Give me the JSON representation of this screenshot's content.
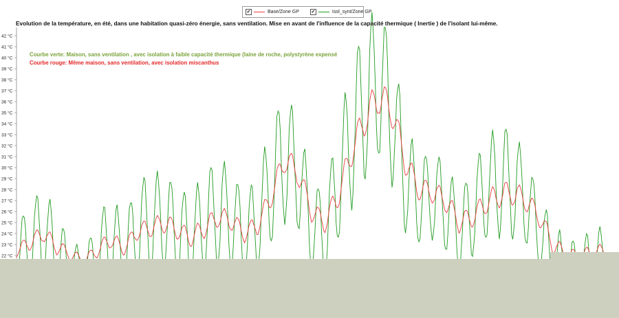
{
  "legend": {
    "items": [
      {
        "label": "Base/Zone GP",
        "checked": "✔",
        "color": "#e63a3a"
      },
      {
        "label": "Isol_synt/Zone GP",
        "checked": "✔",
        "color": "#1f9a1f"
      }
    ]
  },
  "title": "Evolution de la température, en été,  dans une habitation quasi-zéro énergie, sans ventilation. Mise en avant de l'influence de la capacité thermique ( Inertie ) de l'isolant lui-même.",
  "annotations": {
    "green": "Courbe verte: Maison, sans ventilation , avec isolation à faible capacité thermique (laine de roche, polystyrène expensé",
    "red": "Courbe rouge: Même maison, sans ventilation, avec isolation miscanthus"
  },
  "colors": {
    "cover": "#ced0bf",
    "red_series": "#e63a3a",
    "green_series": "#1f9a1f"
  },
  "chart_data": {
    "type": "line",
    "title": "Evolution de la température, en été,  dans une habitation quasi-zéro énergie, sans ventilation. Mise en avant de l'influence de la capacité thermique ( Inertie ) de l'isolant lui-même.",
    "ylabel": "",
    "xlabel": "",
    "y_ticks": [
      "42 °C",
      "41 °C",
      "40 °C",
      "39 °C",
      "38 °C",
      "37 °C",
      "36 °C",
      "35 °C",
      "34 °C",
      "33 °C",
      "32 °C",
      "31 °C",
      "30 °C",
      "29 °C",
      "28 °C",
      "27 °C",
      "26 °C",
      "25 °C",
      "24 °C",
      "23 °C",
      "22 °C"
    ],
    "ylim": [
      22,
      42
    ],
    "grid": true,
    "x_unit": "day",
    "series": [
      {
        "name": "Base/Zone GP",
        "color": "#e63a3a",
        "daily_mean": [
          22.4,
          23.2,
          24.0,
          22.8,
          22.1,
          21.5,
          22.4,
          23.5,
          22.6,
          24.2,
          24.5,
          25.0,
          24.3,
          23.6,
          24.5,
          25.5,
          25.2,
          24.0,
          24.8,
          27.4,
          30.8,
          29.5,
          26.0,
          25.0,
          27.5,
          31.5,
          34.5,
          36.5,
          35.2,
          30.5,
          28.0,
          27.8,
          27.0,
          25.0,
          25.5,
          26.8,
          27.5,
          27.7,
          27.0,
          25.5,
          23.0,
          22.0,
          21.8,
          22.3
        ],
        "daily_amplitude": [
          0.5,
          0.7,
          0.7,
          0.7,
          0.5,
          0.5,
          0.6,
          0.8,
          0.6,
          0.8,
          0.8,
          0.9,
          0.8,
          0.8,
          0.9,
          0.9,
          0.9,
          0.8,
          0.9,
          1.0,
          1.2,
          1.1,
          0.9,
          0.9,
          1.1,
          1.3,
          1.5,
          1.6,
          1.5,
          1.2,
          1.0,
          1.0,
          1.0,
          0.9,
          0.9,
          1.0,
          1.1,
          1.1,
          1.0,
          0.9,
          0.8,
          0.7,
          0.7,
          0.7
        ]
      },
      {
        "name": "Isol_synt/Zone GP",
        "color": "#1f9a1f",
        "daily_mean": [
          22.0,
          23.0,
          24.3,
          22.0,
          21.0,
          20.5,
          22.0,
          23.5,
          22.0,
          24.5,
          24.8,
          25.2,
          24.0,
          23.5,
          24.8,
          26.0,
          25.5,
          23.5,
          25.0,
          28.5,
          31.0,
          29.5,
          24.5,
          24.0,
          28.5,
          33.0,
          36.0,
          38.0,
          35.0,
          29.0,
          27.0,
          27.5,
          26.5,
          24.0,
          26.0,
          28.0,
          28.8,
          28.5,
          27.0,
          24.0,
          21.5,
          20.5,
          20.5,
          21.5
        ],
        "daily_amplitude": [
          3.0,
          3.5,
          4.0,
          3.5,
          2.5,
          2.0,
          3.0,
          4.5,
          3.0,
          4.5,
          4.5,
          4.5,
          4.0,
          4.0,
          4.5,
          5.0,
          4.5,
          4.0,
          4.5,
          5.5,
          6.0,
          5.0,
          4.0,
          4.0,
          5.0,
          6.5,
          7.0,
          7.0,
          6.5,
          5.0,
          4.0,
          4.0,
          4.0,
          3.5,
          4.0,
          4.5,
          5.0,
          5.0,
          4.0,
          3.5,
          3.5,
          3.0,
          3.0,
          3.0
        ]
      }
    ]
  }
}
